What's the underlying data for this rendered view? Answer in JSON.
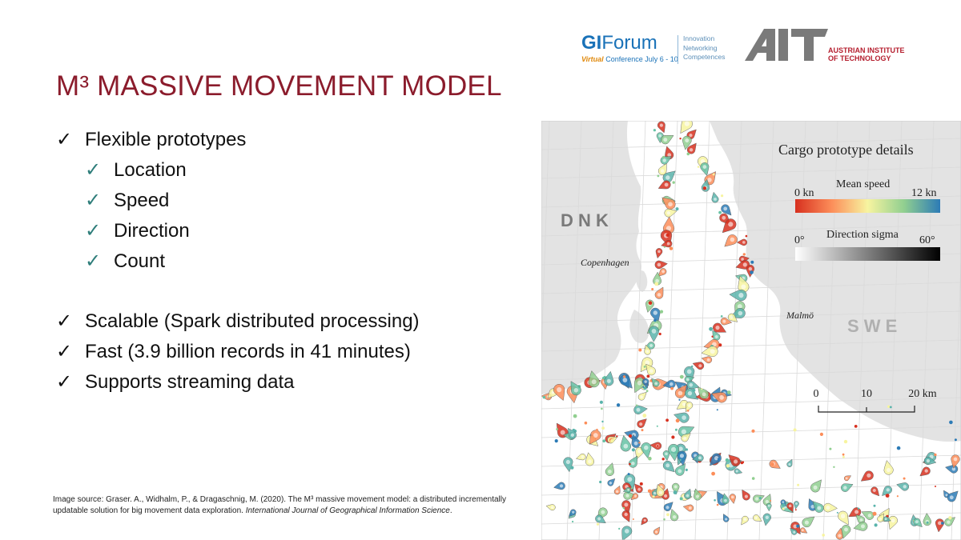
{
  "slide": {
    "title": "M³ MASSIVE MOVEMENT MODEL",
    "bullets": [
      {
        "text": "Flexible prototypes",
        "level": 1
      },
      {
        "text": "Location",
        "level": 2
      },
      {
        "text": "Speed",
        "level": 2
      },
      {
        "text": "Direction",
        "level": 2
      },
      {
        "text": "Count",
        "level": 2
      },
      {
        "text": "Scalable (Spark distributed processing)",
        "level": 1
      },
      {
        "text": "Fast (3.9 billion records in 41 minutes)",
        "level": 1
      },
      {
        "text": "Supports streaming data",
        "level": 1
      }
    ],
    "check_mark": "✓",
    "source_line1": "Image source: Graser. A., Widhalm, P., & Dragaschnig, M. (2020). The M³ massive movement model: a distributed incrementally",
    "source_line2": "updatable solution for big movement data exploration.",
    "source_journal": "International Journal of Geographical Information Science",
    "source_end": "."
  },
  "logos": {
    "giforum": {
      "main": "GI",
      "main2": "Forum",
      "virtual": "Virtual",
      "conference": "Conference July 6 - 10",
      "tags": [
        "Innovation",
        "Networking",
        "Competences"
      ]
    },
    "ait": {
      "letters": "AIT",
      "name_line1": "AUSTRIAN INSTITUTE",
      "name_line2": "OF TECHNOLOGY"
    }
  },
  "map": {
    "legend_title": "Cargo prototype details",
    "speed_label": "Mean speed",
    "speed_min": "0 kn",
    "speed_max": "12 kn",
    "dir_label": "Direction sigma",
    "dir_min": "0°",
    "dir_max": "60°",
    "places": {
      "dnk": "D N K",
      "swe": "S W E",
      "copenhagen": "Copenhagen",
      "malmo": "Malmö"
    },
    "scale": {
      "ticks": [
        "0",
        "10",
        "20 km"
      ]
    },
    "colors": {
      "land": "#e3e3e3",
      "water": "#ffffff",
      "grid": "#cfcfcf",
      "slow": "#d7301f",
      "mid": "#f5d76e",
      "fast": "#2c7bb6",
      "title": "#8b1c2c"
    }
  }
}
